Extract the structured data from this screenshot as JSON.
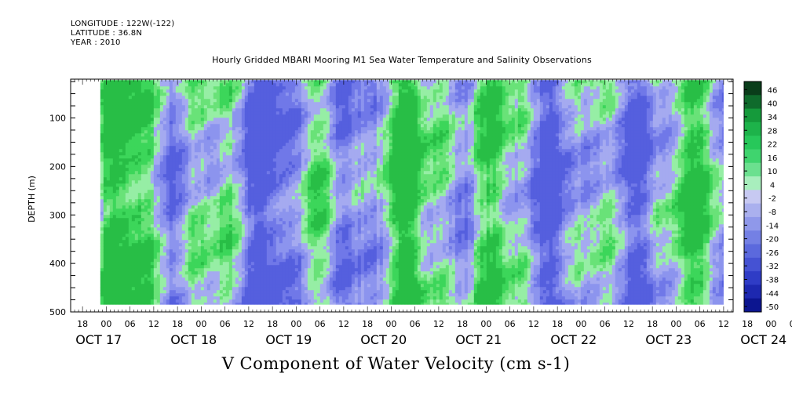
{
  "header": {
    "longitude": "LONGITUDE : 122W(-122)",
    "latitude": "LATITUDE : 36.8N",
    "year": "YEAR : 2010"
  },
  "chart_data": {
    "type": "heatmap",
    "title": "Hourly Gridded MBARI Mooring M1 Sea Water Temperature and Salinity Observations",
    "bottom_title": "V Component of Water Velocity (cm s-1)",
    "ylabel": "DEPTH (m)",
    "y_axis": {
      "ticks": [
        100,
        200,
        300,
        400,
        500
      ],
      "range": [
        20,
        500
      ],
      "inverted": true
    },
    "x_axis": {
      "hour_labels": [
        "18",
        "00",
        "06",
        "12",
        "18",
        "00",
        "06",
        "12",
        "18",
        "00",
        "06",
        "12",
        "18",
        "00",
        "06",
        "12",
        "18",
        "00",
        "06",
        "12",
        "18",
        "00",
        "06",
        "12",
        "18",
        "00",
        "06",
        "12",
        "18",
        "00",
        "06",
        "12"
      ],
      "date_labels": [
        {
          "label": "OCT 17",
          "day": 0.0
        },
        {
          "label": "OCT 18",
          "day": 1.0
        },
        {
          "label": "OCT 19",
          "day": 2.0
        },
        {
          "label": "OCT 20",
          "day": 3.0
        },
        {
          "label": "OCT 21",
          "day": 4.0
        },
        {
          "label": "OCT 22",
          "day": 5.0
        },
        {
          "label": "OCT 23",
          "day": 6.0
        },
        {
          "label": "OCT 24",
          "day": 7.0
        }
      ],
      "range_days": [
        -0.375,
        6.6
      ],
      "data_range_days": [
        -0.0625,
        6.5
      ]
    },
    "colorbar": {
      "labels": [
        "46",
        "40",
        "34",
        "28",
        "22",
        "16",
        "10",
        "4",
        "-2",
        "-8",
        "-14",
        "-20",
        "-26",
        "-32",
        "-38",
        "-44",
        "-50"
      ],
      "colors": [
        "#0a3d1a",
        "#0f6b2c",
        "#159a3b",
        "#1db34a",
        "#27c85a",
        "#3fd46e",
        "#6be08f",
        "#a8eebd",
        "#c7c9f2",
        "#aab0ee",
        "#8f98ea",
        "#7480e4",
        "#5b69dd",
        "#4552d3",
        "#2f3cc6",
        "#1d28b0",
        "#0c1590"
      ],
      "range": [
        -50,
        52
      ]
    },
    "color_scale": {
      "green": [
        [
          150,
          238,
          165
        ],
        [
          105,
          226,
          120
        ],
        [
          60,
          214,
          90
        ],
        [
          40,
          190,
          70
        ]
      ],
      "blue": [
        [
          165,
          170,
          240
        ],
        [
          140,
          148,
          238
        ],
        [
          112,
          120,
          232
        ],
        [
          85,
          95,
          222
        ]
      ]
    }
  }
}
